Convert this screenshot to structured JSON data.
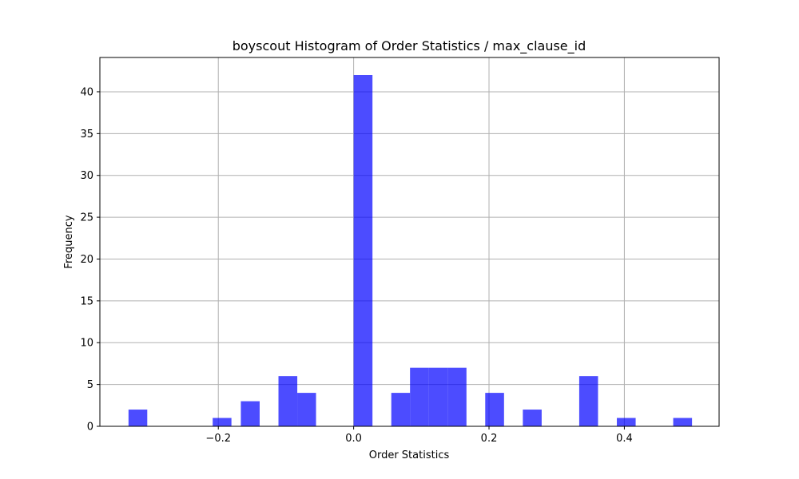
{
  "chart_data": {
    "type": "bar",
    "title": "boyscout Histogram of Order Statistics / max_clause_id",
    "xlabel": "Order Statistics",
    "ylabel": "Frequency",
    "bar_color": "#0000ff",
    "bar_opacity": 0.7,
    "grid": true,
    "xlim": [
      -0.375,
      0.54
    ],
    "ylim": [
      0,
      44.1
    ],
    "x_ticks": [
      {
        "value": -0.2,
        "label": "−0.2"
      },
      {
        "value": 0.0,
        "label": "0.0"
      },
      {
        "value": 0.2,
        "label": "0.2"
      },
      {
        "value": 0.4,
        "label": "0.4"
      }
    ],
    "y_ticks": [
      0,
      5,
      10,
      15,
      20,
      25,
      30,
      35,
      40
    ],
    "bins": [
      {
        "x0": -0.3327,
        "x1": -0.305,
        "count": 2
      },
      {
        "x0": -0.2083,
        "x1": -0.1806,
        "count": 1
      },
      {
        "x0": -0.1667,
        "x1": -0.1389,
        "count": 3
      },
      {
        "x0": -0.1111,
        "x1": -0.0833,
        "count": 6
      },
      {
        "x0": -0.0833,
        "x1": -0.0556,
        "count": 4
      },
      {
        "x0": 0.0,
        "x1": 0.0278,
        "count": 42
      },
      {
        "x0": 0.0556,
        "x1": 0.0833,
        "count": 4
      },
      {
        "x0": 0.0833,
        "x1": 0.1111,
        "count": 7
      },
      {
        "x0": 0.1111,
        "x1": 0.1389,
        "count": 7
      },
      {
        "x0": 0.1389,
        "x1": 0.1667,
        "count": 7
      },
      {
        "x0": 0.1944,
        "x1": 0.2222,
        "count": 4
      },
      {
        "x0": 0.25,
        "x1": 0.2778,
        "count": 2
      },
      {
        "x0": 0.3333,
        "x1": 0.3611,
        "count": 6
      },
      {
        "x0": 0.3889,
        "x1": 0.4167,
        "count": 1
      },
      {
        "x0": 0.4722,
        "x1": 0.5,
        "count": 1
      }
    ]
  }
}
